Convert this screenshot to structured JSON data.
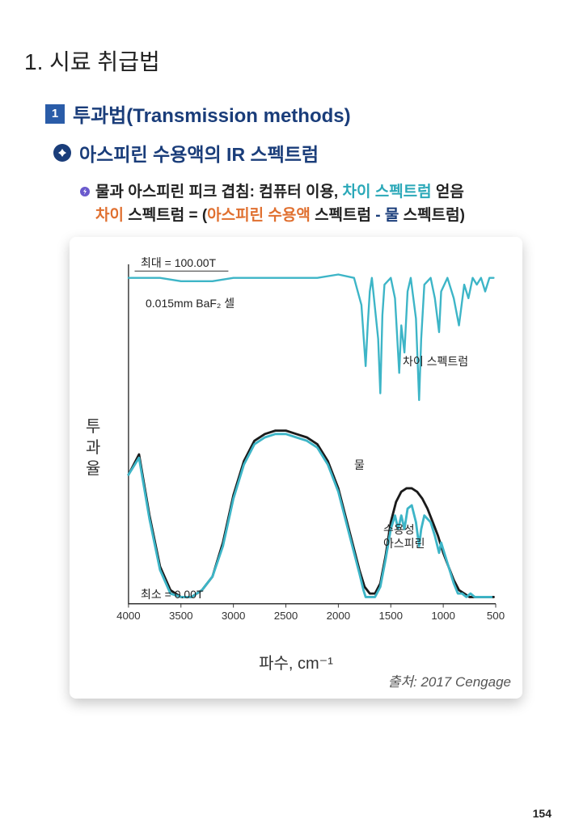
{
  "heading1": "1. 시료 취급법",
  "section": {
    "num": "1",
    "title": "투과법(Transmission methods)"
  },
  "subsection": {
    "bullet_glyph": "✦",
    "title": "아스피린 수용액의 IR 스펙트럼"
  },
  "body": {
    "line1_a": "물과 아스피린 피크 겹침: 컴퓨터 이용, ",
    "line1_b": "차이 스펙트럼",
    "line1_c": " 얻음",
    "line2_a": "차이",
    "line2_b": " 스펙트럼 = (",
    "line2_c": "아스피린 수용액",
    "line2_d": " 스펙트럼 ",
    "line2_e": "- 물",
    "line2_f": " 스펙트럼)"
  },
  "chart": {
    "type": "line",
    "xlabel": "파수, cm⁻¹",
    "ylabel_chars": [
      "투",
      "과",
      "율"
    ],
    "x_ticks": [
      4000,
      3500,
      3000,
      2500,
      2000,
      1500,
      1000,
      500
    ],
    "x_range": [
      4000,
      500
    ],
    "y_range": [
      0,
      100
    ],
    "annot_max": "최대 = 100.00T",
    "annot_min": "최소 = 0.00T",
    "annot_cell": "0.015mm BaF₂ 셀",
    "annot_diff": "차이 스펙트럼",
    "annot_water": "물",
    "annot_aspirin1": "수용성",
    "annot_aspirin2": "아스피린",
    "colors": {
      "teal": "#3db5c7",
      "black": "#1a1a1a",
      "axis": "#333333",
      "bg": "#ffffff",
      "grid": "#cccccc"
    },
    "series_diff": {
      "color": "#3db5c7",
      "width": 2.5,
      "points": [
        [
          4000,
          96
        ],
        [
          3700,
          96
        ],
        [
          3500,
          95
        ],
        [
          3200,
          95
        ],
        [
          3000,
          96
        ],
        [
          2600,
          96
        ],
        [
          2400,
          96
        ],
        [
          2200,
          96
        ],
        [
          2000,
          97
        ],
        [
          1850,
          96
        ],
        [
          1780,
          88
        ],
        [
          1740,
          70
        ],
        [
          1720,
          82
        ],
        [
          1700,
          92
        ],
        [
          1680,
          96
        ],
        [
          1620,
          78
        ],
        [
          1600,
          62
        ],
        [
          1580,
          85
        ],
        [
          1560,
          94
        ],
        [
          1500,
          96
        ],
        [
          1460,
          90
        ],
        [
          1420,
          68
        ],
        [
          1400,
          82
        ],
        [
          1370,
          74
        ],
        [
          1340,
          92
        ],
        [
          1310,
          96
        ],
        [
          1260,
          84
        ],
        [
          1230,
          60
        ],
        [
          1210,
          78
        ],
        [
          1180,
          94
        ],
        [
          1120,
          96
        ],
        [
          1080,
          90
        ],
        [
          1040,
          80
        ],
        [
          1020,
          92
        ],
        [
          960,
          96
        ],
        [
          900,
          90
        ],
        [
          850,
          82
        ],
        [
          800,
          94
        ],
        [
          760,
          90
        ],
        [
          720,
          96
        ],
        [
          680,
          94
        ],
        [
          640,
          96
        ],
        [
          600,
          92
        ],
        [
          560,
          96
        ],
        [
          520,
          96
        ]
      ]
    },
    "series_water": {
      "color": "#1a1a1a",
      "width": 3,
      "points": [
        [
          4000,
          38
        ],
        [
          3900,
          44
        ],
        [
          3800,
          26
        ],
        [
          3700,
          11
        ],
        [
          3600,
          4
        ],
        [
          3500,
          2
        ],
        [
          3400,
          2
        ],
        [
          3300,
          4
        ],
        [
          3200,
          8
        ],
        [
          3100,
          18
        ],
        [
          3000,
          32
        ],
        [
          2900,
          42
        ],
        [
          2800,
          48
        ],
        [
          2700,
          50
        ],
        [
          2600,
          51
        ],
        [
          2500,
          51
        ],
        [
          2400,
          50
        ],
        [
          2300,
          49
        ],
        [
          2200,
          47
        ],
        [
          2100,
          42
        ],
        [
          2000,
          34
        ],
        [
          1900,
          22
        ],
        [
          1800,
          10
        ],
        [
          1750,
          5
        ],
        [
          1700,
          3
        ],
        [
          1650,
          3
        ],
        [
          1600,
          6
        ],
        [
          1550,
          14
        ],
        [
          1500,
          24
        ],
        [
          1450,
          30
        ],
        [
          1400,
          33
        ],
        [
          1350,
          34
        ],
        [
          1300,
          34
        ],
        [
          1250,
          33
        ],
        [
          1200,
          31
        ],
        [
          1150,
          28
        ],
        [
          1100,
          24
        ],
        [
          1050,
          20
        ],
        [
          1000,
          15
        ],
        [
          950,
          11
        ],
        [
          900,
          7
        ],
        [
          850,
          4
        ],
        [
          800,
          3
        ],
        [
          750,
          2
        ],
        [
          700,
          2
        ],
        [
          650,
          2
        ],
        [
          600,
          2
        ],
        [
          560,
          2
        ],
        [
          520,
          2
        ]
      ]
    },
    "series_aspirin": {
      "color": "#3db5c7",
      "width": 3,
      "points": [
        [
          4000,
          38
        ],
        [
          3900,
          43
        ],
        [
          3800,
          25
        ],
        [
          3700,
          10
        ],
        [
          3600,
          3
        ],
        [
          3500,
          2
        ],
        [
          3400,
          2
        ],
        [
          3300,
          4
        ],
        [
          3200,
          8
        ],
        [
          3100,
          17
        ],
        [
          3000,
          31
        ],
        [
          2900,
          41
        ],
        [
          2800,
          47
        ],
        [
          2700,
          49
        ],
        [
          2600,
          50
        ],
        [
          2500,
          50
        ],
        [
          2400,
          49
        ],
        [
          2300,
          48
        ],
        [
          2200,
          46
        ],
        [
          2100,
          41
        ],
        [
          2000,
          33
        ],
        [
          1900,
          21
        ],
        [
          1800,
          9
        ],
        [
          1760,
          4
        ],
        [
          1740,
          2
        ],
        [
          1700,
          2
        ],
        [
          1650,
          2
        ],
        [
          1600,
          5
        ],
        [
          1550,
          13
        ],
        [
          1500,
          22
        ],
        [
          1460,
          26
        ],
        [
          1430,
          22
        ],
        [
          1400,
          26
        ],
        [
          1370,
          22
        ],
        [
          1340,
          28
        ],
        [
          1300,
          29
        ],
        [
          1260,
          24
        ],
        [
          1230,
          17
        ],
        [
          1210,
          22
        ],
        [
          1180,
          26
        ],
        [
          1120,
          24
        ],
        [
          1080,
          20
        ],
        [
          1040,
          15
        ],
        [
          1020,
          18
        ],
        [
          980,
          14
        ],
        [
          940,
          10
        ],
        [
          900,
          6
        ],
        [
          860,
          3
        ],
        [
          820,
          3
        ],
        [
          780,
          2
        ],
        [
          740,
          3
        ],
        [
          700,
          2
        ],
        [
          660,
          2
        ],
        [
          620,
          2
        ],
        [
          580,
          2
        ],
        [
          540,
          2
        ]
      ]
    },
    "source": "출처: 2017 Cengage"
  },
  "page_number": "154"
}
